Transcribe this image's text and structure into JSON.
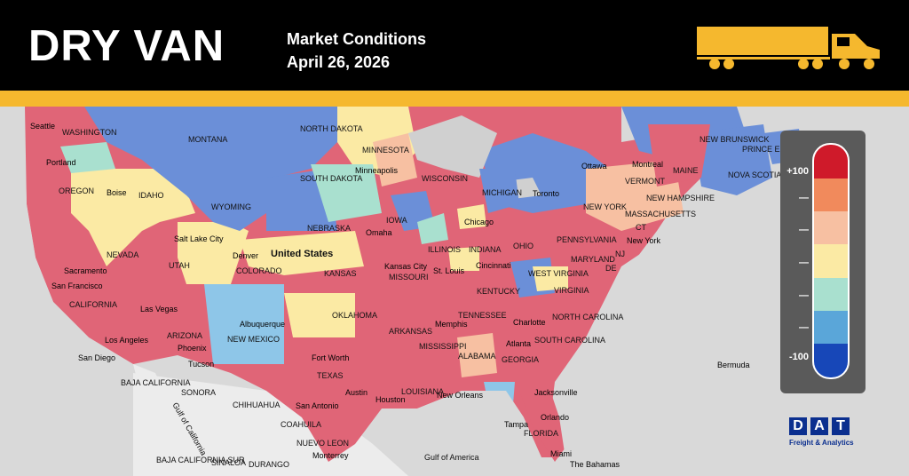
{
  "header": {
    "title": "DRY VAN",
    "subtitle_line1": "Market Conditions",
    "subtitle_line2": "April 26, 2026"
  },
  "legend": {
    "top_label": "+100",
    "bottom_label": "-100",
    "dash": "—",
    "colors": [
      "#cf1a2a",
      "#f18a5c",
      "#f7c0a2",
      "#fbeaa4",
      "#a9e0cf",
      "#5aa6d9",
      "#1747b8"
    ]
  },
  "brand": {
    "letters": [
      "D",
      "A",
      "T"
    ],
    "tagline": "Freight & Analytics"
  },
  "map": {
    "country_label": "United States",
    "cities": [
      "Seattle",
      "Portland",
      "Boise",
      "Salt Lake City",
      "Sacramento",
      "San Francisco",
      "Las Vegas",
      "Los Angeles",
      "San Diego",
      "Phoenix",
      "Tucson",
      "Albuquerque",
      "Denver",
      "Omaha",
      "Minneapolis",
      "Chicago",
      "Kansas City",
      "St. Louis",
      "Cincinnati",
      "Toronto",
      "Ottawa",
      "Montreal",
      "New York",
      "Charlotte",
      "Atlanta",
      "Memphis",
      "Fort Worth",
      "Austin",
      "San Antonio",
      "Houston",
      "New Orleans",
      "Jacksonville",
      "Orlando",
      "Tampa",
      "Miami",
      "Monterrey",
      "Bermuda",
      "The Bahamas"
    ],
    "regions": [
      "WASHINGTON",
      "OREGON",
      "IDAHO",
      "MONTANA",
      "WYOMING",
      "NORTH DAKOTA",
      "SOUTH DAKOTA",
      "NEBRASKA",
      "MINNESOTA",
      "IOWA",
      "WISCONSIN",
      "MICHIGAN",
      "ILLINOIS",
      "INDIANA",
      "OHIO",
      "PENNSYLVANIA",
      "NEW YORK",
      "VERMONT",
      "NEW HAMPSHIRE",
      "MAINE",
      "MASSACHUSETTS",
      "CT",
      "NJ",
      "MARYLAND",
      "DE",
      "WEST VIRGINIA",
      "VIRGINIA",
      "KENTUCKY",
      "TENNESSEE",
      "NORTH CAROLINA",
      "SOUTH CAROLINA",
      "GEORGIA",
      "ALABAMA",
      "MISSISSIPPI",
      "LOUISIANA",
      "ARKANSAS",
      "MISSOURI",
      "KANSAS",
      "OKLAHOMA",
      "TEXAS",
      "NEW MEXICO",
      "ARIZONA",
      "UTAH",
      "COLORADO",
      "NEVADA",
      "CALIFORNIA",
      "FLORIDA",
      "NEW BRUNSWICK",
      "PRINCE EDWARD ISLAND",
      "NOVA SCOTIA",
      "SONORA",
      "CHIHUAHUA",
      "COAHUILA",
      "NUEVO LEON",
      "BAJA CALIFORNIA",
      "BAJA CALIFORNIA SUR",
      "SINALOA",
      "DURANGO",
      "Gulf of America",
      "Gulf of California"
    ]
  }
}
